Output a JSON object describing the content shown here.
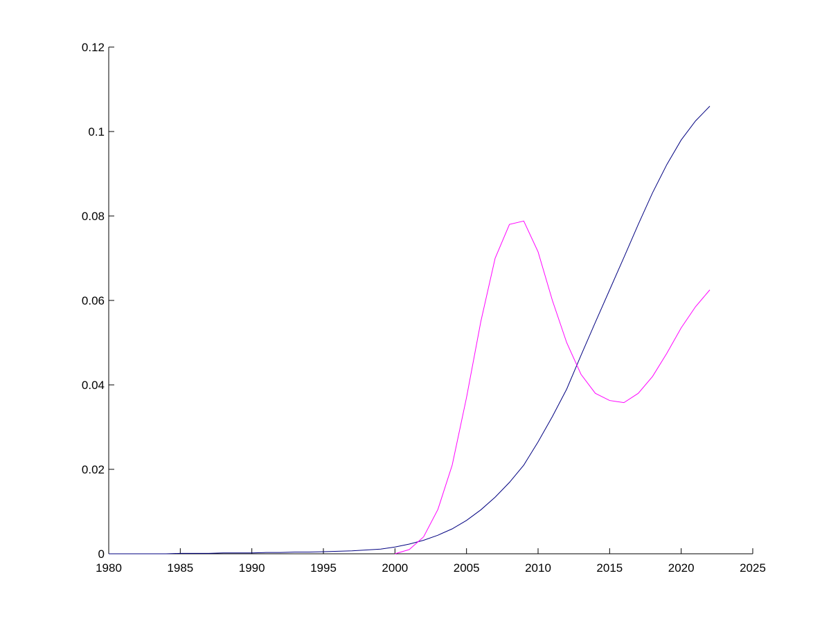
{
  "chart_data": {
    "type": "line",
    "x": [
      1980,
      1981,
      1982,
      1983,
      1984,
      1985,
      1986,
      1987,
      1988,
      1989,
      1990,
      1991,
      1992,
      1993,
      1994,
      1995,
      1996,
      1997,
      1998,
      1999,
      2000,
      2001,
      2002,
      2003,
      2004,
      2005,
      2006,
      2007,
      2008,
      2009,
      2010,
      2011,
      2012,
      2013,
      2014,
      2015,
      2016,
      2017,
      2018,
      2019,
      2020,
      2021,
      2022
    ],
    "series": [
      {
        "color": "#000080",
        "values": [
          0,
          0,
          0,
          0,
          0,
          0.0001,
          0.0001,
          0.0001,
          0.0002,
          0.0002,
          0.0002,
          0.0003,
          0.0003,
          0.0004,
          0.0004,
          0.0005,
          0.0006,
          0.0007,
          0.0009,
          0.0011,
          0.0016,
          0.0023,
          0.0032,
          0.0044,
          0.0059,
          0.0079,
          0.0104,
          0.0134,
          0.0169,
          0.021,
          0.0265,
          0.0325,
          0.039,
          0.047,
          0.0548,
          0.0625,
          0.0702,
          0.078,
          0.0855,
          0.0922,
          0.098,
          0.1025,
          0.106
        ]
      },
      {
        "color": "#ff00ff",
        "values": [
          null,
          null,
          null,
          null,
          null,
          null,
          null,
          null,
          null,
          null,
          null,
          null,
          null,
          null,
          null,
          null,
          null,
          null,
          null,
          null,
          0,
          0.001,
          0.004,
          0.0105,
          0.021,
          0.037,
          0.055,
          0.07,
          0.078,
          0.0788,
          0.0715,
          0.06,
          0.05,
          0.0425,
          0.038,
          0.0363,
          0.0358,
          0.038,
          0.042,
          0.0475,
          0.0535,
          0.0585,
          0.0625
        ]
      }
    ],
    "xlim": [
      1980,
      2025
    ],
    "xticks": [
      1980,
      1985,
      1990,
      1995,
      2000,
      2005,
      2010,
      2015,
      2020,
      2025
    ],
    "ylim": [
      0,
      0.12
    ],
    "yticks": [
      0,
      0.02,
      0.04,
      0.06,
      0.08,
      0.1,
      0.12
    ]
  }
}
